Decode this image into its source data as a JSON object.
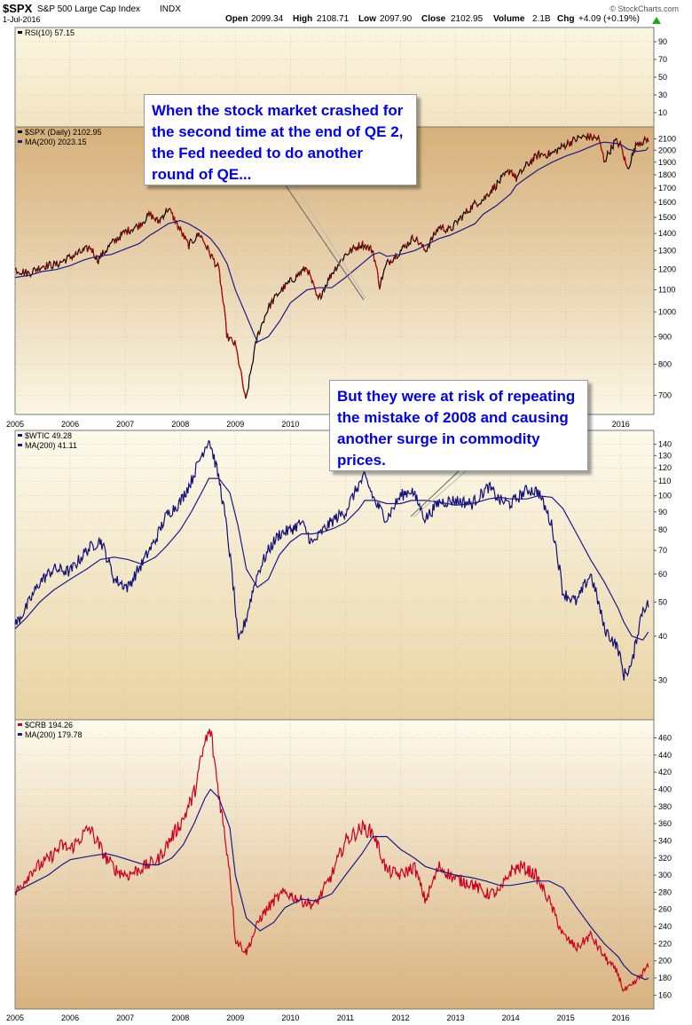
{
  "header": {
    "symbol": "$SPX",
    "name": "S&P 500 Large Cap Index",
    "exchange": "INDX",
    "date": "1-Jul-2016",
    "quote": {
      "open_label": "Open",
      "open": "2099.34",
      "high_label": "High",
      "high": "2108.71",
      "low_label": "Low",
      "low": "2097.90",
      "close_label": "Close",
      "close": "2102.95",
      "volume_label": "Volume",
      "volume": "2.1B",
      "chg_label": "Chg",
      "chg": "+4.09 (+0.19%)"
    },
    "brand": "© StockCharts.com",
    "up_arrow_color": "#1aaa1a"
  },
  "annotations": [
    {
      "text": "When the stock market crashed for the second time at the end of QE 2, the Fed needed to do another round of QE..."
    },
    {
      "text": "But they were at risk of repeating the mistake of 2008 and causing another surge in commodity prices."
    }
  ],
  "colors": {
    "panel_dark": "#d7b27e",
    "panel_light": "#fbf6e2",
    "spx_line": "#000000",
    "spx_down": "#cc0000",
    "ma_line": "#1a1a8c",
    "wtic_line": "#10107a",
    "crb_line": "#cc0022",
    "callout_text": "#0000ee"
  },
  "chart_data": [
    {
      "type": "line",
      "panel": "rsi",
      "legend": [
        "RSI(10) 57.15"
      ],
      "y_ticks": [
        90,
        70,
        50,
        30,
        10
      ],
      "ylim": [
        0,
        100
      ],
      "x": [
        2016.5
      ],
      "series": [
        {
          "name": "RSI(10)",
          "values": [
            57.15
          ]
        }
      ]
    },
    {
      "type": "line",
      "panel": "spx",
      "legend": [
        "$SPX (Daily) 2102.95",
        "MA(200) 2023.15"
      ],
      "x_ticks": [
        "2005",
        "2006",
        "2007",
        "2008",
        "2009",
        "2010",
        "2011",
        "2012",
        "2013",
        "2014",
        "2015",
        "2016"
      ],
      "y_ticks": [
        2100,
        2000,
        1900,
        1800,
        1700,
        1600,
        1500,
        1400,
        1300,
        1200,
        1100,
        1000,
        900,
        800,
        700
      ],
      "ylim": [
        660,
        2160
      ],
      "y_scale": "log",
      "x": [
        2005.0,
        2005.25,
        2005.5,
        2005.75,
        2006.0,
        2006.25,
        2006.37,
        2006.5,
        2006.75,
        2007.0,
        2007.25,
        2007.45,
        2007.6,
        2007.78,
        2008.0,
        2008.15,
        2008.35,
        2008.55,
        2008.7,
        2008.85,
        2009.0,
        2009.19,
        2009.4,
        2009.6,
        2009.8,
        2010.0,
        2010.3,
        2010.5,
        2010.75,
        2011.0,
        2011.3,
        2011.5,
        2011.62,
        2011.75,
        2012.0,
        2012.25,
        2012.45,
        2012.7,
        2012.9,
        2013.1,
        2013.35,
        2013.5,
        2013.75,
        2014.0,
        2014.1,
        2014.3,
        2014.5,
        2014.75,
        2015.0,
        2015.25,
        2015.4,
        2015.6,
        2015.7,
        2015.9,
        2016.0,
        2016.12,
        2016.3,
        2016.45,
        2016.5
      ],
      "series": [
        {
          "name": "$SPX",
          "values": [
            1200,
            1180,
            1220,
            1225,
            1265,
            1300,
            1320,
            1250,
            1340,
            1410,
            1450,
            1520,
            1470,
            1560,
            1420,
            1330,
            1400,
            1280,
            1200,
            900,
            870,
            680,
            900,
            1020,
            1090,
            1140,
            1210,
            1050,
            1180,
            1280,
            1340,
            1300,
            1120,
            1230,
            1300,
            1380,
            1300,
            1440,
            1420,
            1500,
            1590,
            1620,
            1730,
            1840,
            1770,
            1880,
            1960,
            1970,
            2050,
            2110,
            2120,
            2100,
            1910,
            2080,
            2040,
            1840,
            2070,
            2080,
            2102.95
          ]
        },
        {
          "name": "MA(200)",
          "values": [
            1160,
            1170,
            1190,
            1200,
            1220,
            1250,
            1260,
            1270,
            1280,
            1310,
            1340,
            1390,
            1420,
            1460,
            1480,
            1460,
            1420,
            1370,
            1310,
            1230,
            1100,
            990,
            880,
            900,
            960,
            1040,
            1100,
            1110,
            1110,
            1160,
            1230,
            1280,
            1290,
            1270,
            1280,
            1300,
            1330,
            1370,
            1390,
            1420,
            1460,
            1520,
            1580,
            1660,
            1720,
            1780,
            1840,
            1900,
            1950,
            1990,
            2020,
            2060,
            2070,
            2060,
            2050,
            2010,
            1990,
            2000,
            2023.15
          ]
        }
      ]
    },
    {
      "type": "line",
      "panel": "wtic",
      "legend": [
        "$WTIC 49.28",
        "MA(200) 41.11"
      ],
      "y_ticks": [
        140,
        130,
        120,
        110,
        100,
        90,
        80,
        70,
        60,
        50,
        40,
        30
      ],
      "ylim": [
        24,
        148
      ],
      "y_scale": "log",
      "x": [
        2005.0,
        2005.2,
        2005.45,
        2005.7,
        2006.0,
        2006.3,
        2006.55,
        2006.8,
        2007.05,
        2007.3,
        2007.55,
        2007.75,
        2008.0,
        2008.2,
        2008.4,
        2008.52,
        2008.7,
        2008.9,
        2009.05,
        2009.2,
        2009.4,
        2009.6,
        2009.8,
        2010.0,
        2010.2,
        2010.4,
        2010.6,
        2010.8,
        2011.0,
        2011.25,
        2011.35,
        2011.55,
        2011.75,
        2012.0,
        2012.2,
        2012.45,
        2012.7,
        2013.0,
        2013.3,
        2013.6,
        2013.8,
        2014.0,
        2014.3,
        2014.5,
        2014.75,
        2014.95,
        2015.2,
        2015.45,
        2015.7,
        2015.95,
        2016.05,
        2016.2,
        2016.4,
        2016.5
      ],
      "series": [
        {
          "name": "$WTIC",
          "values": [
            43,
            48,
            57,
            62,
            61,
            70,
            75,
            58,
            55,
            64,
            75,
            88,
            96,
            110,
            132,
            145,
            112,
            68,
            38,
            45,
            60,
            70,
            78,
            80,
            84,
            73,
            80,
            86,
            90,
            108,
            113,
            95,
            86,
            100,
            104,
            86,
            96,
            97,
            95,
            106,
            97,
            95,
            104,
            103,
            82,
            53,
            50,
            60,
            42,
            37,
            31,
            33,
            48,
            49.28
          ]
        },
        {
          "name": "MA(200)",
          "values": [
            42,
            45,
            50,
            54,
            58,
            62,
            66,
            67,
            66,
            64,
            67,
            72,
            80,
            90,
            103,
            112,
            112,
            102,
            82,
            62,
            55,
            58,
            68,
            74,
            78,
            78,
            79,
            81,
            84,
            92,
            97,
            97,
            95,
            95,
            97,
            97,
            96,
            94,
            95,
            98,
            99,
            98,
            98,
            100,
            99,
            92,
            78,
            66,
            57,
            48,
            44,
            40,
            39,
            41.11
          ]
        }
      ]
    },
    {
      "type": "line",
      "panel": "crb",
      "legend": [
        "$CRB 194.26",
        "MA(200) 179.78"
      ],
      "x_ticks": [
        "2005",
        "2006",
        "2007",
        "2008",
        "2009",
        "2010",
        "2011",
        "2012",
        "2013",
        "2014",
        "2015",
        "2016"
      ],
      "y_ticks": [
        460,
        440,
        420,
        400,
        380,
        360,
        340,
        320,
        300,
        280,
        260,
        240,
        220,
        200,
        180,
        160
      ],
      "ylim": [
        150,
        475
      ],
      "x": [
        2005.0,
        2005.3,
        2005.6,
        2005.85,
        2006.0,
        2006.35,
        2006.65,
        2006.85,
        2007.05,
        2007.35,
        2007.6,
        2007.85,
        2008.05,
        2008.25,
        2008.45,
        2008.55,
        2008.7,
        2008.9,
        2009.0,
        2009.2,
        2009.45,
        2009.7,
        2009.9,
        2010.2,
        2010.45,
        2010.75,
        2011.0,
        2011.3,
        2011.5,
        2011.75,
        2012.0,
        2012.25,
        2012.45,
        2012.7,
        2013.0,
        2013.3,
        2013.55,
        2013.8,
        2014.0,
        2014.2,
        2014.45,
        2014.7,
        2014.95,
        2015.2,
        2015.45,
        2015.7,
        2015.95,
        2016.05,
        2016.2,
        2016.45,
        2016.5
      ],
      "series": [
        {
          "name": "$CRB",
          "values": [
            278,
            305,
            318,
            335,
            330,
            355,
            320,
            305,
            300,
            310,
            318,
            345,
            365,
            395,
            455,
            468,
            395,
            305,
            225,
            210,
            250,
            270,
            280,
            270,
            265,
            300,
            340,
            355,
            350,
            305,
            300,
            310,
            270,
            310,
            295,
            290,
            278,
            280,
            305,
            310,
            300,
            270,
            230,
            215,
            230,
            205,
            185,
            165,
            170,
            190,
            194.26
          ]
        },
        {
          "name": "MA(200)",
          "values": [
            280,
            290,
            300,
            312,
            318,
            322,
            325,
            322,
            318,
            312,
            312,
            320,
            335,
            360,
            390,
            400,
            390,
            355,
            300,
            250,
            235,
            245,
            262,
            272,
            270,
            278,
            300,
            325,
            345,
            345,
            330,
            320,
            310,
            305,
            300,
            297,
            293,
            288,
            288,
            290,
            293,
            293,
            285,
            262,
            240,
            220,
            205,
            195,
            185,
            178,
            179.78
          ]
        }
      ]
    }
  ]
}
